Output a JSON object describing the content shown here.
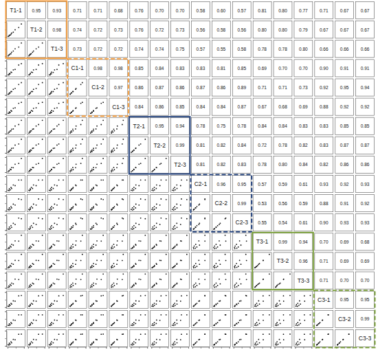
{
  "chart_data": {
    "type": "scatter_matrix",
    "samples": [
      "T1-1",
      "T1-2",
      "T1-3",
      "C1-1",
      "C1-2",
      "C1-3",
      "T2-1",
      "T2-2",
      "T2-3",
      "C2-1",
      "C2-2",
      "C2-3",
      "T3-1",
      "T3-2",
      "T3-3",
      "C3-1",
      "C3-2",
      "C3-3"
    ],
    "values": [
      [
        0.4,
        0.9,
        1.1,
        1.6,
        2.1,
        2.5,
        3.5,
        4.6,
        6.8,
        8.4
      ],
      [
        0.5,
        0.8,
        1.3,
        1.4,
        2.0,
        2.7,
        3.3,
        4.9,
        6.4,
        8.7
      ],
      [
        0.4,
        1.0,
        1.2,
        1.7,
        1.8,
        2.8,
        3.6,
        5.1,
        6.2,
        8.9
      ],
      [
        0.6,
        0.7,
        1.5,
        1.3,
        2.4,
        2.2,
        3.9,
        4.2,
        7.1,
        8.0
      ],
      [
        0.5,
        0.8,
        1.4,
        1.4,
        2.3,
        2.3,
        3.8,
        4.4,
        7.0,
        8.2
      ],
      [
        0.7,
        0.7,
        1.6,
        1.2,
        2.5,
        2.1,
        4.0,
        4.3,
        7.3,
        7.9
      ],
      [
        0.3,
        1.1,
        1.0,
        1.8,
        1.9,
        2.9,
        3.1,
        5.0,
        6.0,
        8.8
      ],
      [
        0.4,
        1.2,
        0.9,
        1.9,
        1.8,
        3.0,
        3.2,
        5.2,
        5.9,
        9.0
      ],
      [
        0.3,
        1.1,
        1.0,
        2.0,
        1.7,
        3.1,
        3.0,
        5.3,
        5.8,
        9.1
      ],
      [
        0.8,
        0.6,
        1.8,
        1.1,
        2.7,
        2.0,
        4.3,
        3.9,
        7.6,
        7.6
      ],
      [
        0.9,
        0.5,
        1.9,
        1.0,
        2.8,
        1.9,
        4.4,
        3.8,
        7.8,
        7.4
      ],
      [
        0.8,
        0.6,
        2.0,
        1.0,
        2.9,
        1.8,
        4.5,
        3.7,
        7.9,
        7.5
      ],
      [
        0.5,
        1.3,
        0.8,
        2.2,
        1.6,
        3.3,
        2.8,
        5.6,
        5.5,
        9.3
      ],
      [
        0.6,
        1.3,
        0.9,
        2.1,
        1.5,
        3.4,
        2.9,
        5.5,
        5.4,
        9.4
      ],
      [
        0.5,
        1.4,
        0.8,
        2.3,
        1.6,
        3.2,
        2.7,
        5.8,
        5.6,
        9.2
      ],
      [
        0.7,
        0.6,
        1.7,
        1.2,
        2.6,
        2.1,
        4.2,
        4.0,
        7.5,
        7.8
      ],
      [
        0.8,
        0.7,
        1.8,
        1.1,
        2.6,
        2.0,
        4.3,
        4.1,
        7.7,
        7.7
      ],
      [
        0.7,
        0.6,
        1.7,
        1.1,
        2.7,
        2.0,
        4.2,
        4.0,
        7.6,
        7.7
      ]
    ],
    "correlations": {
      "values": [
        [
          0.95,
          0.93,
          0.71,
          0.71,
          0.68,
          0.76,
          0.7,
          0.7,
          0.58,
          0.6,
          0.57,
          0.81,
          0.8,
          0.77,
          0.71,
          0.67,
          0.67
        ],
        [
          0.98,
          0.74,
          0.72,
          0.73,
          0.76,
          0.72,
          0.73,
          0.56,
          0.58,
          0.56,
          0.8,
          0.8,
          0.79,
          0.67,
          0.67,
          0.67
        ],
        [
          0.73,
          0.72,
          0.72,
          0.74,
          0.74,
          0.75,
          0.57,
          0.55,
          0.58,
          0.78,
          0.78,
          0.8,
          0.66,
          0.66,
          0.66
        ],
        [
          0.98,
          0.98,
          0.85,
          0.84,
          0.83,
          0.83,
          0.81,
          0.85,
          0.69,
          0.7,
          0.7,
          0.9,
          0.91,
          0.91
        ],
        [
          0.97,
          0.86,
          0.87,
          0.86,
          0.87,
          0.86,
          0.89,
          0.71,
          0.71,
          0.73,
          0.92,
          0.95,
          0.94
        ],
        [
          0.84,
          0.86,
          0.85,
          0.84,
          0.84,
          0.87,
          0.67,
          0.68,
          0.69,
          0.88,
          0.92,
          0.92
        ],
        [
          0.95,
          0.94,
          0.78,
          0.75,
          0.78,
          0.84,
          0.84,
          0.83,
          0.83,
          0.85,
          0.85
        ],
        [
          0.99,
          0.81,
          0.82,
          0.84,
          0.72,
          0.78,
          0.82,
          0.83,
          0.87,
          0.87
        ],
        [
          0.81,
          0.82,
          0.83,
          0.78,
          0.8,
          0.84,
          0.82,
          0.86,
          0.86
        ],
        [
          0.96,
          0.95,
          0.57,
          0.59,
          0.61,
          0.93,
          0.92,
          0.93
        ],
        [
          0.99,
          0.53,
          0.56,
          0.59,
          0.88,
          0.91,
          0.92
        ],
        [
          0.55,
          0.54,
          0.61,
          0.9,
          0.93,
          0.93
        ],
        [
          0.99,
          0.94,
          0.7,
          0.69,
          0.68
        ],
        [
          0.96,
          0.71,
          0.69,
          0.69
        ],
        [
          0.71,
          0.7,
          0.7
        ],
        [
          0.95,
          0.95
        ],
        [
          0.99
        ]
      ],
      "value_labels": [
        [
          "0.95",
          "0.93",
          "0.71",
          "0.71",
          "0.68",
          "0.76",
          "0.70",
          "0.70",
          "0.58",
          "0.60",
          "0.57",
          "0.81",
          "0.80",
          "0.77",
          "0.71",
          "0.67",
          "0.67"
        ],
        [
          "0.98",
          "0.74",
          "0.72",
          "0.73",
          "0.76",
          "0.72",
          "0.73",
          "0.56",
          "0.58",
          "0.56",
          "0.80",
          "0.80",
          "0.79",
          "0.67",
          "0.67",
          "0.67"
        ],
        [
          "0.73",
          "0.72",
          "0.72",
          "0.74",
          "0.74",
          "0.75",
          "0.57",
          "0.55",
          "0.58",
          "0.78",
          "0.78",
          "0.80",
          "0.66",
          "0.66",
          "0.66"
        ],
        [
          "0.98",
          "0.98",
          "0.85",
          "0.84",
          "0.83",
          "0.83",
          "0.81",
          "0.85",
          "0.69",
          "0.70",
          "0.70",
          "0.90",
          "0.91",
          "0.91"
        ],
        [
          "0.97",
          "0.86",
          "0.87",
          "0.86",
          "0.87",
          "0.86",
          "0.89",
          "0.71",
          "0.71",
          "0.73",
          "0.92",
          "0.95",
          "0.94"
        ],
        [
          "0.84",
          "0.86",
          "0.85",
          "0.84",
          "0.84",
          "0.87",
          "0.67",
          "0.68",
          "0.69",
          "0.88",
          "0.92",
          "0.92"
        ],
        [
          "0.95",
          "0.94",
          "0.78",
          "0.75",
          "0.78",
          "0.84",
          "0.84",
          "0.83",
          "0.83",
          "0.85",
          "0.85"
        ],
        [
          "0.99",
          "0.81",
          "0.82",
          "0.84",
          "0.72",
          "0.78",
          "0.82",
          "0.83",
          "0.87",
          "0.87"
        ],
        [
          "0.81",
          "0.82",
          "0.83",
          "0.78",
          "0.80",
          "0.84",
          "0.82",
          "0.86",
          "0.86"
        ],
        [
          "0.96",
          "0.95",
          "0.57",
          "0.59",
          "0.61",
          "0.93",
          "0.92",
          "0.93"
        ],
        [
          "0.99",
          "0.53",
          "0.56",
          "0.59",
          "0.88",
          "0.91",
          "0.92"
        ],
        [
          "0.55",
          "0.54",
          "0.61",
          "0.90",
          "0.93",
          "0.93"
        ],
        [
          "0.99",
          "0.94",
          "0.70",
          "0.69",
          "0.68"
        ],
        [
          "0.96",
          "0.71",
          "0.69",
          "0.69"
        ],
        [
          "0.71",
          "0.70",
          "0.70"
        ],
        [
          "0.95",
          "0.95"
        ],
        [
          "0.99"
        ]
      ]
    },
    "groups": [
      {
        "samples": [
          "T1-1",
          "T1-2",
          "T1-3"
        ],
        "color": "#f39c3d",
        "line_style": "solid"
      },
      {
        "samples": [
          "C1-1",
          "C1-2",
          "C1-3"
        ],
        "color": "#f39c3d",
        "line_style": "dashed"
      },
      {
        "samples": [
          "T2-1",
          "T2-2",
          "T2-3"
        ],
        "color": "#23427e",
        "line_style": "solid"
      },
      {
        "samples": [
          "C2-1",
          "C2-2",
          "C2-3"
        ],
        "color": "#23427e",
        "line_style": "dashed"
      },
      {
        "samples": [
          "T3-1",
          "T3-2",
          "T3-3"
        ],
        "color": "#7da23e",
        "line_style": "solid"
      },
      {
        "samples": [
          "C3-1",
          "C3-2",
          "C3-3"
        ],
        "color": "#7da23e",
        "line_style": "dashed"
      }
    ],
    "color": "#111111",
    "marker": "circle",
    "xlim": [
      0,
      10
    ],
    "ylim": [
      0,
      10
    ],
    "xticks": [
      0,
      5,
      10
    ],
    "yticks": [
      0,
      5,
      10
    ],
    "tick_labels": false
  }
}
